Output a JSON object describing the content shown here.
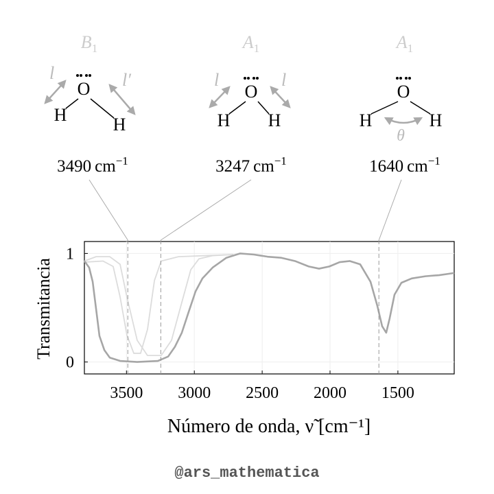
{
  "modes": [
    {
      "symmetry": "B",
      "symmetry_index": "1",
      "atoms": [
        "O",
        "H",
        "H"
      ],
      "bond_labels": [
        "l",
        "l′"
      ],
      "wavenumber": 3490,
      "unit": "cm",
      "unit_exponent": "−1"
    },
    {
      "symmetry": "A",
      "symmetry_index": "1",
      "atoms": [
        "O",
        "H",
        "H"
      ],
      "bond_labels": [
        "l",
        "l"
      ],
      "wavenumber": 3247,
      "unit": "cm",
      "unit_exponent": "−1"
    },
    {
      "symmetry": "A",
      "symmetry_index": "1",
      "atoms": [
        "O",
        "H",
        "H"
      ],
      "angle_label": "θ",
      "wavenumber": 1640,
      "unit": "cm",
      "unit_exponent": "−1"
    }
  ],
  "chart_data": {
    "type": "line",
    "ylabel": "Transmitancia",
    "xlabel": "Número de onda, ν̃   [cm⁻¹]",
    "xlim": [
      3810,
      1085
    ],
    "ylim": [
      -0.11,
      1.11
    ],
    "xticks": [
      3500,
      3000,
      2500,
      2000,
      1500
    ],
    "yticks": [
      0,
      1
    ],
    "grid": true,
    "series": [
      {
        "color": "#dcdcdc",
        "x": [
          3810,
          3673,
          3598,
          3547,
          3497,
          3446,
          3396,
          3345,
          3294,
          3244,
          3117,
          2915,
          2713
        ],
        "values": [
          0.92,
          0.93,
          0.88,
          0.6,
          0.25,
          0.08,
          0.08,
          0.3,
          0.75,
          0.93,
          0.97,
          0.98,
          0.99
        ]
      },
      {
        "color": "#dcdcdc",
        "x": [
          3810,
          3724,
          3623,
          3547,
          3497,
          3421,
          3345,
          3244,
          3168,
          3092,
          3026,
          2966,
          2865,
          2713
        ],
        "values": [
          0.93,
          0.97,
          0.97,
          0.9,
          0.6,
          0.2,
          0.06,
          0.06,
          0.2,
          0.55,
          0.85,
          0.95,
          0.98,
          0.99
        ]
      },
      {
        "color": "#a6a6a6",
        "x": [
          3810,
          3775,
          3749,
          3724,
          3699,
          3663,
          3623,
          3547,
          3421,
          3269,
          3193,
          3143,
          3092,
          3042,
          2991,
          2940,
          2865,
          2764,
          2662,
          2561,
          2460,
          2359,
          2258,
          2157,
          2081,
          2005,
          1929,
          1854,
          1778,
          1702,
          1652,
          1616,
          1586,
          1561,
          1525,
          1474,
          1398,
          1297,
          1196,
          1085
        ],
        "values": [
          0.93,
          0.87,
          0.74,
          0.49,
          0.24,
          0.11,
          0.04,
          0.01,
          0,
          0.01,
          0.05,
          0.14,
          0.27,
          0.46,
          0.65,
          0.77,
          0.87,
          0.96,
          1.0,
          0.99,
          0.97,
          0.96,
          0.93,
          0.88,
          0.86,
          0.88,
          0.92,
          0.93,
          0.9,
          0.74,
          0.52,
          0.33,
          0.27,
          0.4,
          0.62,
          0.73,
          0.77,
          0.79,
          0.8,
          0.82
        ]
      }
    ]
  },
  "footer": "@ars_mathematica"
}
